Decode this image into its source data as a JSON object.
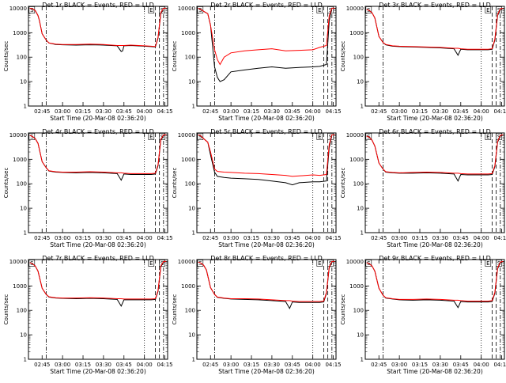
{
  "figure": {
    "xaxis_label": "Start Time (20-Mar-08 02:36:20)",
    "yaxis_label": "Counts/sec",
    "x_ticks": [
      "02:45",
      "03:00",
      "03:15",
      "03:30",
      "03:45",
      "04:00",
      "04:15"
    ],
    "y_ticks": [
      "1",
      "10",
      "100",
      "1000",
      "10000"
    ],
    "annotations": [
      {
        "text": "S",
        "x": "02:37:30"
      },
      {
        "text": "E",
        "x": "04:05:00"
      },
      {
        "text": "S",
        "x": "04:13:00"
      }
    ],
    "colors": {
      "events": "#000000",
      "lld": "#ff0000",
      "background": "#ffffff"
    }
  },
  "chart_data": [
    {
      "type": "line",
      "title": "Det 1r BLACK = Events, RED = LLD",
      "xlabel": "Start Time (20-Mar-08 02:36:20)",
      "ylabel": "Counts/sec",
      "yscale": "log",
      "ylim": [
        1,
        12000
      ],
      "x": [
        "02:36",
        "02:38",
        "02:40",
        "02:42",
        "02:43",
        "02:45",
        "02:48",
        "02:50",
        "02:55",
        "03:00",
        "03:10",
        "03:20",
        "03:30",
        "03:40",
        "03:43",
        "03:44",
        "03:45",
        "03:50",
        "04:00",
        "04:05",
        "04:08",
        "04:10",
        "04:12",
        "04:14",
        "04:16"
      ],
      "series": [
        {
          "name": "BLACK = Events",
          "values": [
            10000,
            9500,
            8000,
            5000,
            3200,
            900,
            500,
            380,
            330,
            320,
            310,
            320,
            310,
            290,
            170,
            180,
            290,
            300,
            280,
            270,
            260,
            600,
            6000,
            10000,
            10000
          ]
        },
        {
          "name": "RED = LLD",
          "values": [
            10000,
            9500,
            8000,
            5000,
            3200,
            900,
            500,
            380,
            340,
            330,
            330,
            340,
            330,
            300,
            300,
            300,
            300,
            310,
            290,
            280,
            270,
            650,
            6500,
            10000,
            10000
          ]
        }
      ]
    },
    {
      "type": "line",
      "title": "Det 2r BLACK = Events, RED = LLD",
      "xlabel": "Start Time (20-Mar-08 02:36:20)",
      "ylabel": "Counts/sec",
      "yscale": "log",
      "ylim": [
        1,
        12000
      ],
      "x": [
        "02:36",
        "02:38",
        "02:40",
        "02:43",
        "02:45",
        "02:48",
        "02:50",
        "02:52",
        "02:55",
        "03:00",
        "03:10",
        "03:20",
        "03:30",
        "03:40",
        "03:50",
        "04:00",
        "04:05",
        "04:10",
        "04:12",
        "04:14",
        "04:16"
      ],
      "series": [
        {
          "name": "BLACK = Events",
          "values": [
            10000,
            9000,
            7500,
            6000,
            2000,
            40,
            15,
            10,
            12,
            25,
            30,
            35,
            40,
            35,
            38,
            40,
            42,
            50,
            3000,
            10000,
            10000
          ]
        },
        {
          "name": "RED = LLD",
          "values": [
            10000,
            9000,
            7500,
            6000,
            2000,
            200,
            80,
            50,
            100,
            150,
            180,
            200,
            220,
            180,
            190,
            200,
            250,
            300,
            5000,
            10000,
            10000
          ]
        }
      ]
    },
    {
      "type": "line",
      "title": "Det 3r BLACK = Events, RED = LLD",
      "xlabel": "Start Time (20-Mar-08 02:36:20)",
      "ylabel": "Counts/sec",
      "yscale": "log",
      "ylim": [
        1,
        12000
      ],
      "x": [
        "02:36",
        "02:38",
        "02:40",
        "02:42",
        "02:45",
        "02:48",
        "02:50",
        "02:55",
        "03:00",
        "03:10",
        "03:20",
        "03:30",
        "03:40",
        "03:43",
        "03:45",
        "03:50",
        "04:00",
        "04:05",
        "04:08",
        "04:10",
        "04:12",
        "04:14",
        "04:16"
      ],
      "series": [
        {
          "name": "BLACK = Events",
          "values": [
            9000,
            8000,
            6500,
            4000,
            700,
            400,
            320,
            280,
            270,
            260,
            250,
            240,
            220,
            120,
            210,
            200,
            200,
            200,
            210,
            500,
            5000,
            9000,
            10000
          ]
        },
        {
          "name": "RED = LLD",
          "values": [
            9000,
            8000,
            6500,
            4000,
            700,
            400,
            330,
            290,
            280,
            270,
            260,
            250,
            230,
            230,
            220,
            210,
            210,
            210,
            220,
            550,
            5500,
            9500,
            10000
          ]
        }
      ]
    },
    {
      "type": "line",
      "title": "Det 4r BLACK = Events, RED = LLD",
      "xlabel": "Start Time (20-Mar-08 02:36:20)",
      "ylabel": "Counts/sec",
      "yscale": "log",
      "ylim": [
        1,
        12000
      ],
      "x": [
        "02:36",
        "02:38",
        "02:40",
        "02:42",
        "02:45",
        "02:48",
        "02:50",
        "02:55",
        "03:00",
        "03:10",
        "03:20",
        "03:30",
        "03:40",
        "03:43",
        "03:45",
        "03:50",
        "04:00",
        "04:05",
        "04:08",
        "04:10",
        "04:12",
        "04:14",
        "04:16"
      ],
      "series": [
        {
          "name": "BLACK = Events",
          "values": [
            9500,
            8500,
            7000,
            4500,
            800,
            450,
            330,
            300,
            290,
            280,
            290,
            280,
            260,
            140,
            250,
            240,
            240,
            240,
            250,
            550,
            6000,
            9500,
            10000
          ]
        },
        {
          "name": "RED = LLD",
          "values": [
            9500,
            8500,
            7000,
            4500,
            800,
            450,
            340,
            310,
            300,
            300,
            310,
            300,
            280,
            280,
            270,
            260,
            260,
            260,
            270,
            600,
            6500,
            10000,
            10000
          ]
        }
      ]
    },
    {
      "type": "line",
      "title": "Det 5r BLACK = Events, RED = LLD",
      "xlabel": "Start Time (20-Mar-08 02:36:20)",
      "ylabel": "Counts/sec",
      "yscale": "log",
      "ylim": [
        1,
        12000
      ],
      "x": [
        "02:36",
        "02:38",
        "02:40",
        "02:43",
        "02:45",
        "02:48",
        "02:50",
        "02:55",
        "03:00",
        "03:10",
        "03:20",
        "03:30",
        "03:40",
        "03:45",
        "03:50",
        "04:00",
        "04:05",
        "04:10",
        "04:12",
        "04:14",
        "04:16"
      ],
      "series": [
        {
          "name": "BLACK = Events",
          "values": [
            10000,
            9000,
            7000,
            5000,
            1500,
            300,
            200,
            180,
            170,
            160,
            150,
            130,
            110,
            90,
            110,
            120,
            120,
            130,
            3000,
            10000,
            10000
          ]
        },
        {
          "name": "RED = LLD",
          "values": [
            10000,
            9000,
            7000,
            5000,
            2000,
            400,
            320,
            300,
            290,
            270,
            260,
            240,
            220,
            200,
            210,
            230,
            220,
            240,
            4000,
            10000,
            10000
          ]
        }
      ]
    },
    {
      "type": "line",
      "title": "Det 6r BLACK = Events, RED = LLD",
      "xlabel": "Start Time (20-Mar-08 02:36:20)",
      "ylabel": "Counts/sec",
      "yscale": "log",
      "ylim": [
        1,
        12000
      ],
      "x": [
        "02:36",
        "02:38",
        "02:40",
        "02:42",
        "02:45",
        "02:48",
        "02:50",
        "02:55",
        "03:00",
        "03:10",
        "03:20",
        "03:30",
        "03:40",
        "03:43",
        "03:45",
        "03:50",
        "04:00",
        "04:05",
        "04:08",
        "04:10",
        "04:12",
        "04:14",
        "04:16"
      ],
      "series": [
        {
          "name": "BLACK = Events",
          "values": [
            9000,
            8000,
            6000,
            3500,
            700,
            400,
            300,
            280,
            270,
            270,
            280,
            270,
            250,
            130,
            240,
            230,
            230,
            230,
            240,
            500,
            5000,
            9000,
            10000
          ]
        },
        {
          "name": "RED = LLD",
          "values": [
            9000,
            8000,
            6000,
            3500,
            700,
            400,
            310,
            290,
            280,
            290,
            300,
            290,
            270,
            270,
            260,
            250,
            250,
            250,
            260,
            550,
            5500,
            9500,
            10000
          ]
        }
      ]
    },
    {
      "type": "line",
      "title": "Det 7r BLACK = Events, RED = LLD",
      "xlabel": "Start Time (20-Mar-08 02:36:20)",
      "ylabel": "Counts/sec",
      "yscale": "log",
      "ylim": [
        1,
        12000
      ],
      "x": [
        "02:36",
        "02:38",
        "02:40",
        "02:42",
        "02:45",
        "02:48",
        "02:50",
        "02:55",
        "03:00",
        "03:10",
        "03:20",
        "03:30",
        "03:40",
        "03:43",
        "03:45",
        "03:50",
        "04:00",
        "04:05",
        "04:08",
        "04:10",
        "04:12",
        "04:14",
        "04:16"
      ],
      "series": [
        {
          "name": "BLACK = Events",
          "values": [
            9000,
            8000,
            6500,
            4000,
            800,
            450,
            350,
            320,
            310,
            300,
            310,
            300,
            280,
            150,
            270,
            270,
            270,
            270,
            280,
            600,
            6000,
            9500,
            10000
          ]
        },
        {
          "name": "RED = LLD",
          "values": [
            9000,
            8000,
            6500,
            4000,
            800,
            450,
            360,
            330,
            320,
            320,
            330,
            320,
            300,
            300,
            290,
            290,
            290,
            290,
            300,
            650,
            6500,
            10000,
            10000
          ]
        }
      ]
    },
    {
      "type": "line",
      "title": "Det 8r BLACK = Events, RED = LLD",
      "xlabel": "Start Time (20-Mar-08 02:36:20)",
      "ylabel": "Counts/sec",
      "yscale": "log",
      "ylim": [
        1,
        12000
      ],
      "x": [
        "02:36",
        "02:38",
        "02:40",
        "02:42",
        "02:45",
        "02:48",
        "02:50",
        "02:55",
        "03:00",
        "03:10",
        "03:20",
        "03:30",
        "03:40",
        "03:43",
        "03:45",
        "03:50",
        "04:00",
        "04:05",
        "04:08",
        "04:10",
        "04:12",
        "04:14",
        "04:16"
      ],
      "series": [
        {
          "name": "BLACK = Events",
          "values": [
            9500,
            8500,
            7000,
            4500,
            850,
            450,
            340,
            310,
            290,
            280,
            270,
            250,
            230,
            120,
            220,
            210,
            210,
            210,
            220,
            500,
            5500,
            9500,
            10000
          ]
        },
        {
          "name": "RED = LLD",
          "values": [
            9500,
            8500,
            7000,
            4500,
            850,
            450,
            350,
            320,
            300,
            300,
            290,
            270,
            250,
            250,
            240,
            230,
            230,
            230,
            240,
            550,
            6000,
            10000,
            10000
          ]
        }
      ]
    },
    {
      "type": "line",
      "title": "Det 9r BLACK = Events, RED = LLD",
      "xlabel": "Start Time (20-Mar-08 02:36:20)",
      "ylabel": "Counts/sec",
      "yscale": "log",
      "ylim": [
        1,
        12000
      ],
      "x": [
        "02:36",
        "02:38",
        "02:40",
        "02:42",
        "02:45",
        "02:48",
        "02:50",
        "02:55",
        "03:00",
        "03:10",
        "03:20",
        "03:30",
        "03:40",
        "03:43",
        "03:45",
        "03:50",
        "04:00",
        "04:05",
        "04:08",
        "04:10",
        "04:12",
        "04:14",
        "04:16"
      ],
      "series": [
        {
          "name": "BLACK = Events",
          "values": [
            9000,
            8000,
            6500,
            4000,
            800,
            420,
            320,
            290,
            270,
            260,
            270,
            260,
            240,
            130,
            230,
            220,
            220,
            220,
            230,
            500,
            5000,
            9000,
            10000
          ]
        },
        {
          "name": "RED = LLD",
          "values": [
            9000,
            8000,
            6500,
            4000,
            800,
            420,
            330,
            300,
            280,
            280,
            290,
            280,
            260,
            260,
            250,
            240,
            240,
            240,
            250,
            550,
            5500,
            9500,
            10000
          ]
        }
      ]
    }
  ]
}
